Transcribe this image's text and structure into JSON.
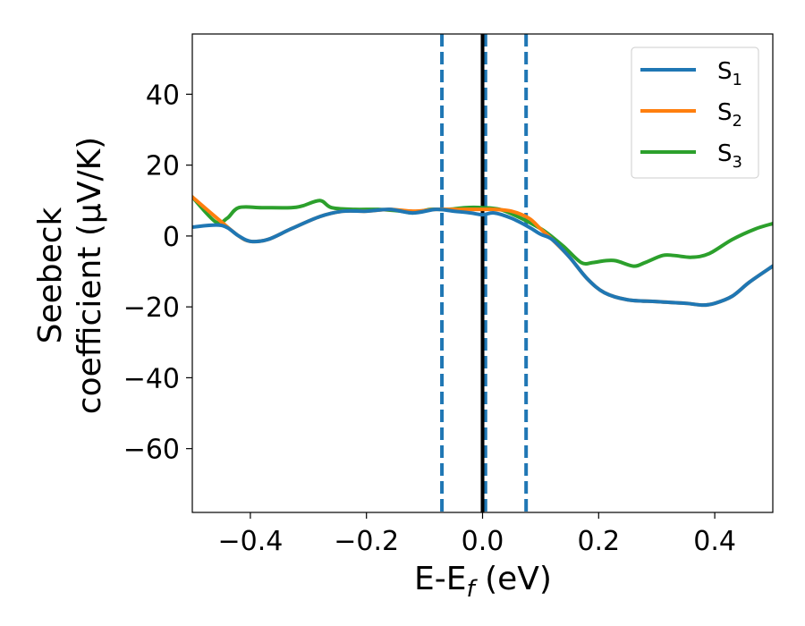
{
  "chart_data": {
    "type": "line",
    "xlabel": "E-E",
    "xlabel_sub": "f",
    "xlabel_unit": " (eV)",
    "ylabel_line1": "Seebeck",
    "ylabel_line2": "coefficient  (μV/K)",
    "xlim": [
      -0.5,
      0.5
    ],
    "ylim": [
      -78,
      57
    ],
    "xticks": [
      -0.4,
      -0.2,
      0.0,
      0.2,
      0.4
    ],
    "xtick_labels": [
      "−0.4",
      "−0.2",
      "0.0",
      "0.2",
      "0.4"
    ],
    "yticks": [
      -60,
      -40,
      -20,
      0,
      20,
      40
    ],
    "ytick_labels": [
      "−60",
      "−40",
      "−20",
      "0",
      "20",
      "40"
    ],
    "legend_position": "top-right",
    "vertical_lines": [
      {
        "x": -0.07,
        "style": "dashed",
        "color": "#1f77b4"
      },
      {
        "x": 0.005,
        "style": "dashed",
        "color": "#1f77b4"
      },
      {
        "x": 0.075,
        "style": "dashed",
        "color": "#1f77b4"
      },
      {
        "x": 0.0,
        "style": "solid",
        "color": "#000000"
      }
    ],
    "series": [
      {
        "name": "S",
        "sub": "1",
        "color": "#1f77b4",
        "x": [
          -0.5,
          -0.45,
          -0.42,
          -0.4,
          -0.37,
          -0.33,
          -0.28,
          -0.24,
          -0.2,
          -0.16,
          -0.12,
          -0.08,
          -0.05,
          -0.02,
          0.0,
          0.02,
          0.05,
          0.08,
          0.1,
          0.12,
          0.15,
          0.18,
          0.21,
          0.25,
          0.3,
          0.35,
          0.38,
          0.4,
          0.43,
          0.46,
          0.5
        ],
        "y": [
          2.5,
          3,
          0,
          -1.5,
          -1,
          2,
          5.5,
          7,
          7,
          7.5,
          6.5,
          7.5,
          7,
          6.5,
          6,
          6.5,
          5,
          2.5,
          0.5,
          -1,
          -6,
          -12,
          -16,
          -18,
          -18.5,
          -19,
          -19.5,
          -19,
          -17,
          -13,
          -8.5
        ]
      },
      {
        "name": "S",
        "sub": "2",
        "color": "#ff7f0e",
        "x": [
          -0.5,
          -0.45,
          -0.42,
          -0.4,
          -0.37,
          -0.33,
          -0.28,
          -0.24,
          -0.2,
          -0.16,
          -0.12,
          -0.08,
          -0.05,
          -0.02,
          0.0,
          0.02,
          0.05,
          0.08,
          0.1,
          0.12,
          0.15,
          0.18,
          0.21,
          0.25,
          0.3,
          0.35,
          0.38,
          0.4,
          0.43,
          0.46,
          0.5
        ],
        "y": [
          11,
          4,
          0,
          -1.5,
          -1,
          2,
          5.5,
          7,
          7,
          7.5,
          7,
          7.5,
          7.5,
          7.5,
          7.5,
          7.5,
          7,
          5,
          2,
          -1,
          -6,
          -12,
          -16,
          -18,
          -18.5,
          -19,
          -19.5,
          -19,
          -17,
          -13,
          -8.5
        ]
      },
      {
        "name": "S",
        "sub": "3",
        "color": "#2ca02c",
        "x": [
          -0.5,
          -0.46,
          -0.44,
          -0.42,
          -0.38,
          -0.33,
          -0.31,
          -0.28,
          -0.26,
          -0.22,
          -0.18,
          -0.14,
          -0.12,
          -0.09,
          -0.06,
          -0.03,
          0.0,
          0.03,
          0.06,
          0.09,
          0.11,
          0.14,
          0.17,
          0.19,
          0.21,
          0.23,
          0.26,
          0.28,
          0.31,
          0.33,
          0.36,
          0.39,
          0.43,
          0.47,
          0.5
        ],
        "y": [
          11,
          4,
          5,
          8,
          8,
          8,
          8.5,
          10,
          8,
          7.5,
          7.5,
          7,
          6.5,
          7.5,
          7.5,
          8,
          8,
          7.5,
          5.5,
          3,
          1,
          -3,
          -7.5,
          -7.5,
          -7,
          -7,
          -8.5,
          -7.5,
          -5.5,
          -5.5,
          -6,
          -5,
          -1,
          2,
          3.5
        ]
      }
    ]
  }
}
